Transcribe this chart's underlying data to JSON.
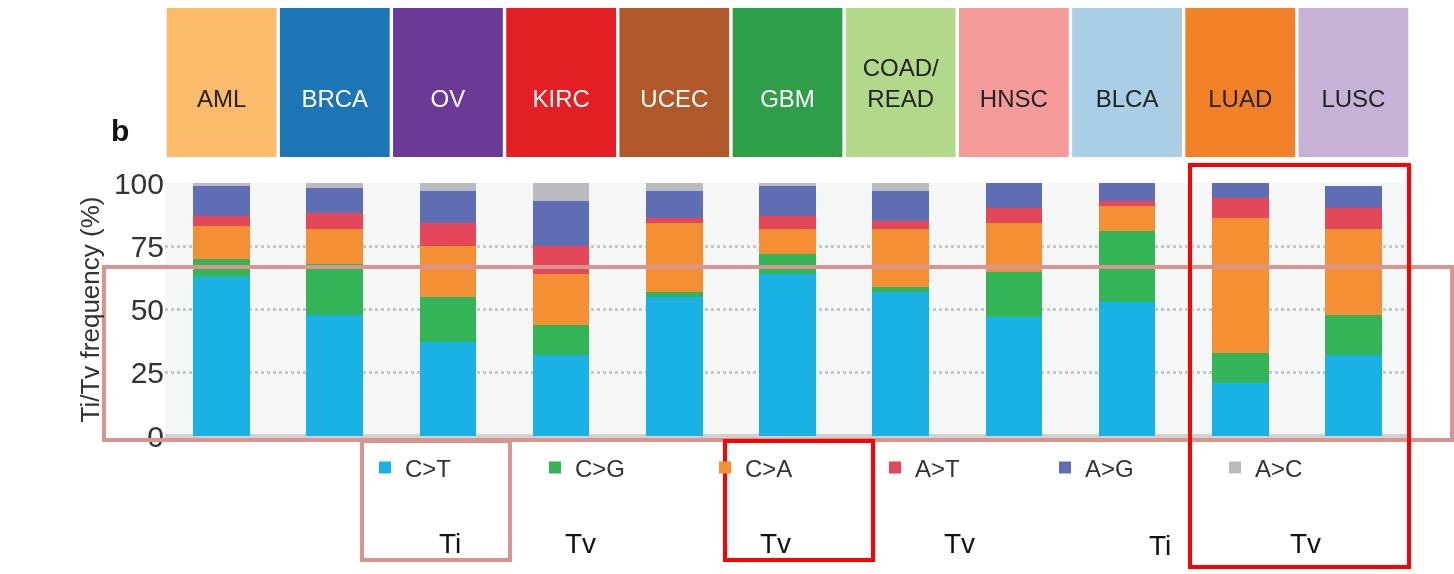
{
  "chart_data": {
    "type": "bar",
    "stacked": true,
    "categories": [
      "AML",
      "BRCA",
      "OV",
      "KIRC",
      "UCEC",
      "GBM",
      "COAD/\nREAD",
      "HNSC",
      "BLCA",
      "LUAD",
      "LUSC"
    ],
    "ylabel": "Ti/Tv frequency (%)",
    "ylim": [
      0,
      100
    ],
    "yticks": [
      0,
      25,
      50,
      75,
      100
    ],
    "grid": "y",
    "legend": "bottom",
    "series": [
      {
        "name": "C>T",
        "color": "#1ab1e4",
        "values": [
          63,
          48,
          37,
          32,
          55,
          64,
          57,
          47,
          53,
          21,
          32
        ]
      },
      {
        "name": "C>G",
        "color": "#32b457",
        "values": [
          7,
          20,
          18,
          12,
          2,
          8,
          2,
          18,
          28,
          12,
          16
        ]
      },
      {
        "name": "C>A",
        "color": "#f58f33",
        "values": [
          13,
          14,
          20,
          20,
          27,
          10,
          23,
          19,
          10,
          53,
          34
        ]
      },
      {
        "name": "A>T",
        "color": "#e4465a",
        "values": [
          4,
          6,
          9,
          11,
          2,
          5,
          3,
          6,
          2,
          8,
          8
        ]
      },
      {
        "name": "A>G",
        "color": "#5f6db4",
        "values": [
          12,
          10,
          13,
          18,
          11,
          12,
          12,
          10,
          7,
          6,
          9
        ]
      },
      {
        "name": "A>C",
        "color": "#babbbf",
        "values": [
          1,
          2,
          3,
          7,
          3,
          1,
          3,
          0,
          0,
          0,
          0
        ]
      }
    ],
    "annotations": [
      "b",
      "Ti",
      "Tv",
      "Tv",
      "Tv",
      "Ti",
      "Tv"
    ]
  }
}
